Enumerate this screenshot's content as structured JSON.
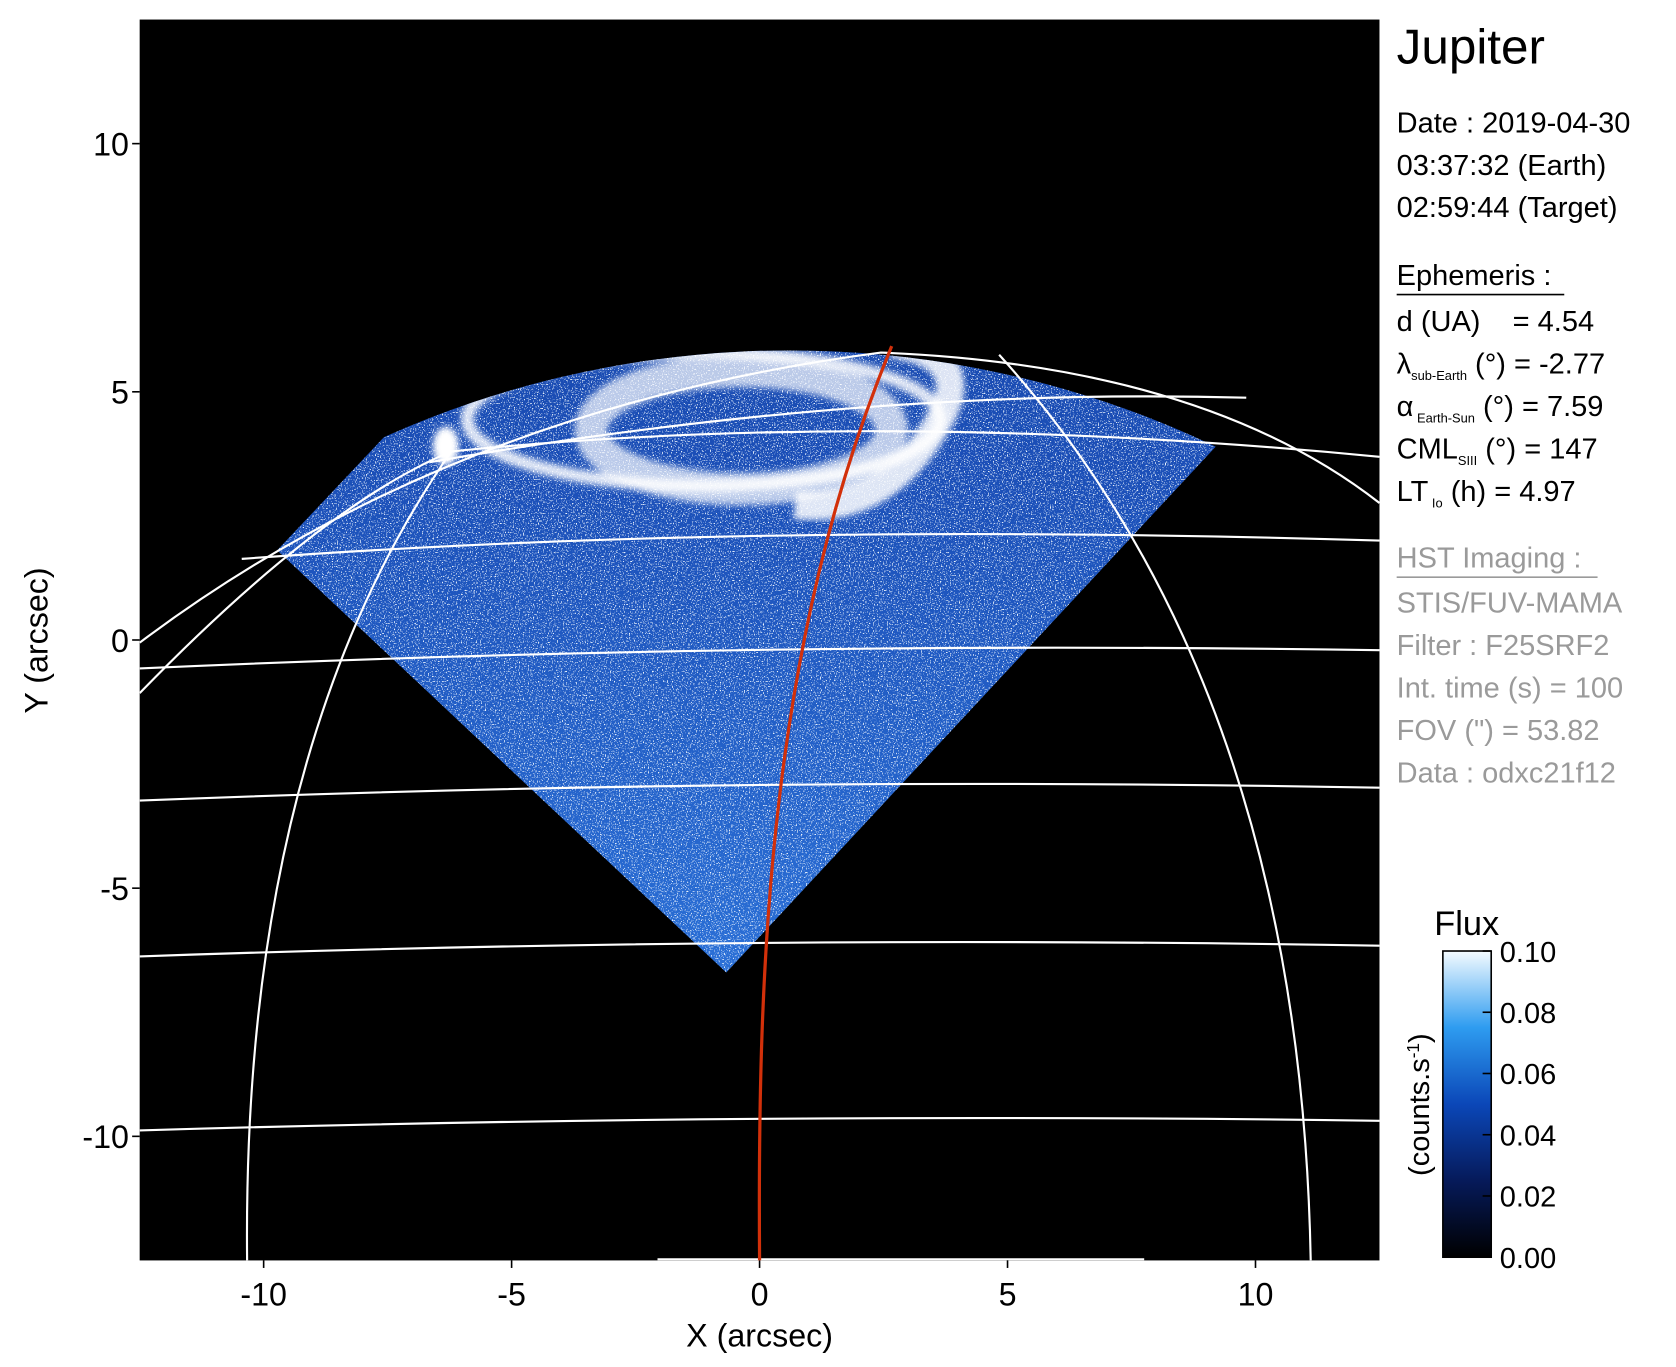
{
  "chart_data": {
    "type": "image",
    "title": "Jupiter",
    "xlabel": "X (arcsec)",
    "ylabel": "Y (arcsec)",
    "xlim": [
      -12.5,
      12.5
    ],
    "ylim": [
      -12.5,
      12.5
    ],
    "xticks": [
      -10,
      -5,
      0,
      5,
      10
    ],
    "yticks": [
      -10,
      -5,
      0,
      5,
      10
    ],
    "colorbar": {
      "title": "Flux",
      "label": [
        "(counts.s",
        "-1",
        ")"
      ],
      "lim": [
        0,
        0.1
      ],
      "ticks": [
        {
          "value": 0,
          "label": "0.00"
        },
        {
          "value": 0.02,
          "label": "0.02"
        },
        {
          "value": 0.04,
          "label": "0.04"
        },
        {
          "value": 0.06,
          "label": "0.06"
        },
        {
          "value": 0.08,
          "label": "0.08"
        },
        {
          "value": 0.1,
          "label": "0.10"
        }
      ]
    },
    "date_lines": [
      "Date : 2019-04-30",
      "03:37:32 (Earth)",
      "02:59:44 (Target)"
    ],
    "ephemeris_title": "Ephemeris :",
    "ephemeris": [
      [
        "d (UA)    = 4.54"
      ],
      [
        "λ",
        "sub-Earth",
        " (°) = -2.77"
      ],
      [
        "α",
        " Earth-Sun",
        " (°) = 7.59"
      ],
      [
        "CML",
        "SIII",
        " (°) = 147"
      ],
      [
        "LT",
        " Io",
        " (h) = 4.97"
      ]
    ],
    "imaging_title": "HST Imaging :",
    "imaging": [
      "STIS/FUV-MAMA",
      "Filter : F25SRF2",
      "Int. time (s) = 100",
      "FOV (\") = 53.82",
      "Data : odxc21f12"
    ]
  }
}
